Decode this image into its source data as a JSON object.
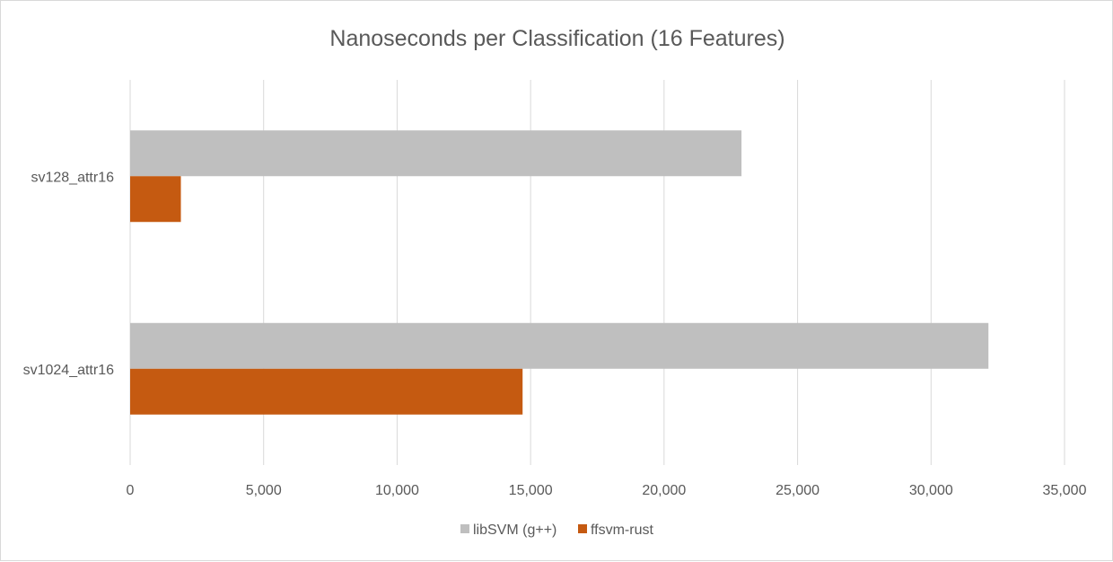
{
  "chart_data": {
    "type": "bar",
    "orientation": "horizontal",
    "title": "Nanoseconds per Classification (16 Features)",
    "xlabel": "",
    "ylabel": "",
    "categories": [
      "sv128_attr16",
      "sv1024_attr16"
    ],
    "series": [
      {
        "name": "libSVM (g++)",
        "values": [
          22900,
          32150
        ],
        "color": "#bfbfbf"
      },
      {
        "name": "ffsvm-rust",
        "values": [
          1900,
          14700
        ],
        "color": "#c55a11"
      }
    ],
    "xlim": [
      0,
      35000
    ],
    "xticks": [
      0,
      5000,
      10000,
      15000,
      20000,
      25000,
      30000,
      35000
    ],
    "xtick_labels": [
      "0",
      "5,000",
      "10,000",
      "15,000",
      "20,000",
      "25,000",
      "30,000",
      "35,000"
    ],
    "grid": "vertical",
    "legend_position": "bottom"
  }
}
